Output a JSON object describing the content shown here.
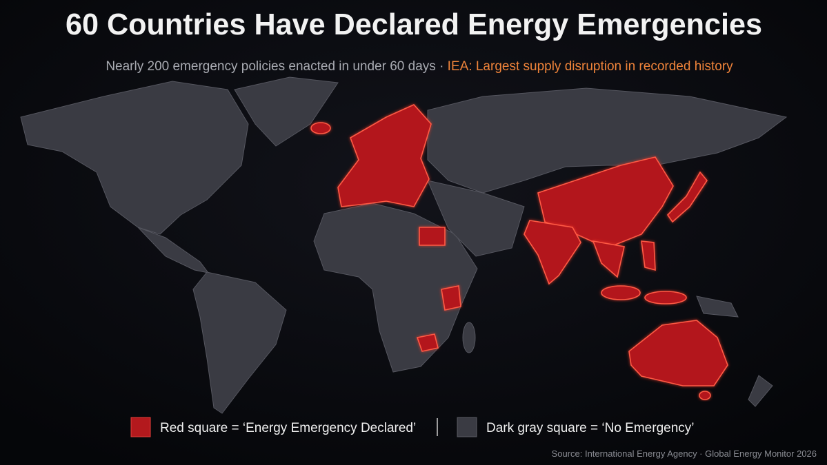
{
  "header": {
    "title": "60 Countries Have Declared Energy Emergencies",
    "subtitle": "Nearly 200 emergency policies enacted in under 60 days",
    "separator": "·",
    "highlight": "IEA: Largest supply disruption in recorded history"
  },
  "legend": {
    "items": [
      {
        "label": "Red square = ‘Energy Emergency Declared’",
        "color": "#b3191d"
      },
      {
        "label": "Dark gray square = ‘No Emergency’",
        "color": "#3a3b43"
      }
    ]
  },
  "source": "Source: International Energy Agency · Global Energy Monitor 2026"
}
